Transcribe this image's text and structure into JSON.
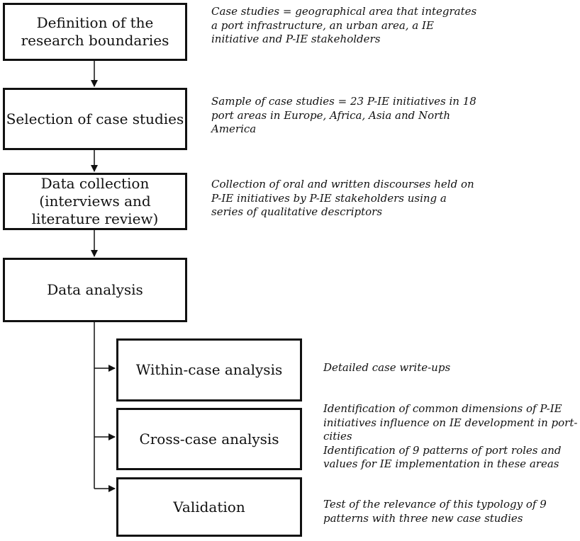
{
  "steps": [
    {
      "label": "Definition of the\nresearch boundaries",
      "note": "Case studies = geographical area that integrates\na port infrastructure, an urban area, a IE\ninitiative and P-IE stakeholders"
    },
    {
      "label": "Selection of case studies",
      "note": "Sample of case studies = 23 P-IE initiatives in 18\nport areas in Europe, Africa, Asia and North\nAmerica"
    },
    {
      "label": "Data collection\n(interviews and\nliterature review)",
      "note": "Collection of oral and written discourses held on\nP-IE initiatives by P-IE stakeholders using a\nseries of qualitative descriptors"
    },
    {
      "label": "Data analysis"
    }
  ],
  "substeps": [
    {
      "label": "Within-case analysis",
      "note": "Detailed case write-ups"
    },
    {
      "label": "Cross-case analysis",
      "note": "Identification of common dimensions of P-IE\ninitiatives influence on IE development in port-\ncities\nIdentification of 9 patterns of port roles and\nvalues for IE implementation in these areas"
    },
    {
      "label": "Validation",
      "note": "Test of the relevance of this typology of 9\npatterns with three new case studies"
    }
  ]
}
